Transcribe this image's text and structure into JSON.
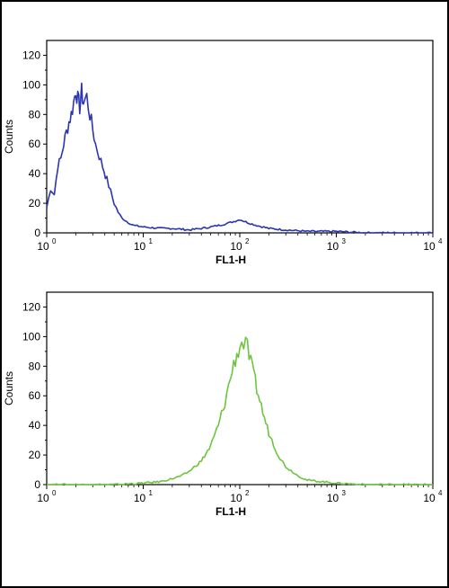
{
  "chart_data": [
    {
      "type": "line",
      "xlabel": "FL1-H",
      "ylabel": "Counts",
      "x_scale": "log",
      "xlim": [
        1,
        10000
      ],
      "ylim": [
        0,
        130
      ],
      "x_ticks": [
        {
          "base": "10",
          "exp": "0"
        },
        {
          "base": "10",
          "exp": "1"
        },
        {
          "base": "10",
          "exp": "2"
        },
        {
          "base": "10",
          "exp": "3"
        },
        {
          "base": "10",
          "exp": "4"
        }
      ],
      "y_ticks": [
        "0",
        "20",
        "40",
        "60",
        "80",
        "100",
        "120"
      ],
      "color": "#2b35b0",
      "series": [
        {
          "x": [
            1.0,
            1.1,
            1.2,
            1.3,
            1.4,
            1.5,
            1.6,
            1.7,
            1.8,
            1.9,
            2.0,
            2.1,
            2.2,
            2.3,
            2.4,
            2.6,
            2.8,
            3.0,
            3.2,
            3.5,
            3.8,
            4.2,
            4.6,
            5.0,
            5.5,
            6.0,
            7.0,
            8.0,
            10,
            15,
            20,
            30,
            40,
            50,
            60,
            70,
            80,
            90,
            100,
            120,
            150,
            200,
            300,
            500,
            1000,
            2000,
            5000,
            10000
          ],
          "y": [
            17,
            30,
            26,
            45,
            50,
            60,
            68,
            75,
            80,
            88,
            97,
            90,
            85,
            95,
            88,
            92,
            80,
            70,
            60,
            52,
            45,
            36,
            28,
            20,
            14,
            10,
            7,
            5,
            4,
            3,
            3,
            2,
            3,
            4,
            5,
            6,
            7,
            8,
            9,
            7,
            5,
            3,
            2,
            1,
            1,
            0,
            0,
            0
          ]
        }
      ]
    },
    {
      "type": "line",
      "xlabel": "FL1-H",
      "ylabel": "Counts",
      "x_scale": "log",
      "xlim": [
        1,
        10000
      ],
      "ylim": [
        0,
        130
      ],
      "x_ticks": [
        {
          "base": "10",
          "exp": "0"
        },
        {
          "base": "10",
          "exp": "1"
        },
        {
          "base": "10",
          "exp": "2"
        },
        {
          "base": "10",
          "exp": "3"
        },
        {
          "base": "10",
          "exp": "4"
        }
      ],
      "y_ticks": [
        "0",
        "20",
        "40",
        "60",
        "80",
        "100",
        "120"
      ],
      "color": "#6cc63d",
      "series": [
        {
          "x": [
            1.0,
            2,
            5,
            10,
            15,
            20,
            25,
            30,
            40,
            50,
            60,
            70,
            80,
            90,
            100,
            110,
            120,
            130,
            150,
            180,
            200,
            250,
            300,
            400,
            500,
            700,
            1000,
            2000,
            5000,
            10000
          ],
          "y": [
            0,
            0,
            0,
            1,
            2,
            4,
            6,
            9,
            16,
            26,
            40,
            55,
            72,
            85,
            93,
            96,
            92,
            82,
            65,
            45,
            35,
            20,
            12,
            6,
            3,
            2,
            1,
            0,
            0,
            0
          ]
        }
      ]
    }
  ]
}
